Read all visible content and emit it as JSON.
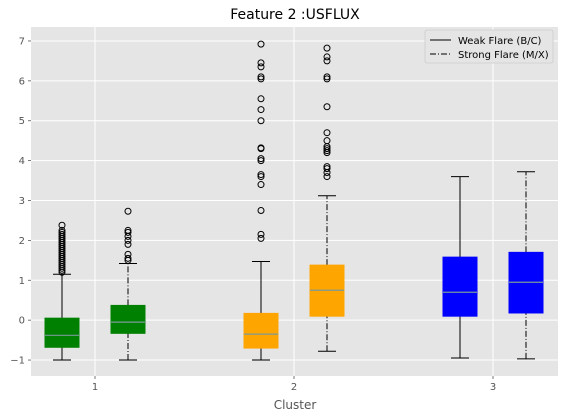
{
  "chart_data": {
    "type": "boxplot",
    "title": "Feature 2 :USFLUX",
    "xlabel": "Cluster",
    "ylabel": "",
    "ylim": [
      -1.4,
      7.35
    ],
    "yticks": [
      -1,
      0,
      1,
      2,
      3,
      4,
      5,
      6,
      7
    ],
    "categories": [
      "1",
      "2",
      "3"
    ],
    "grid": true,
    "legend_placement": "top-right",
    "legend": [
      {
        "label": "Weak Flare (B/C)",
        "style": "solid"
      },
      {
        "label": "Strong Flare (M/X)",
        "style": "dashdot"
      }
    ],
    "groups": [
      {
        "category": "1",
        "color": "#008000",
        "boxes": [
          {
            "series": "Weak Flare (B/C)",
            "whisker_low": -1.0,
            "q1": -0.68,
            "median": -0.38,
            "q3": 0.05,
            "whisker_high": 1.15,
            "outliers": [
              1.2,
              1.25,
              1.3,
              1.35,
              1.4,
              1.45,
              1.5,
              1.55,
              1.6,
              1.65,
              1.7,
              1.75,
              1.8,
              1.85,
              1.9,
              1.95,
              2.0,
              2.05,
              2.1,
              2.15,
              2.2,
              2.25,
              2.38
            ]
          },
          {
            "series": "Strong Flare (M/X)",
            "whisker_low": -1.0,
            "q1": -0.33,
            "median": -0.05,
            "q3": 0.37,
            "whisker_high": 1.42,
            "outliers": [
              1.5,
              1.55,
              1.65,
              1.9,
              2.0,
              2.1,
              2.2,
              2.25,
              2.73
            ]
          }
        ]
      },
      {
        "category": "2",
        "color": "#FFA500",
        "boxes": [
          {
            "series": "Weak Flare (B/C)",
            "whisker_low": -1.0,
            "q1": -0.7,
            "median": -0.35,
            "q3": 0.17,
            "whisker_high": 1.47,
            "outliers": [
              2.05,
              2.15,
              2.75,
              3.4,
              3.6,
              3.65,
              4.0,
              4.05,
              4.3,
              4.32,
              5.0,
              5.28,
              5.55,
              6.05,
              6.1,
              6.35,
              6.45,
              6.92
            ]
          },
          {
            "series": "Strong Flare (M/X)",
            "whisker_low": -0.78,
            "q1": 0.1,
            "median": 0.75,
            "q3": 1.38,
            "whisker_high": 3.12,
            "outliers": [
              3.6,
              3.7,
              3.8,
              3.85,
              4.2,
              4.25,
              4.3,
              4.35,
              4.5,
              4.7,
              5.35,
              6.05,
              6.1,
              6.5,
              6.6,
              6.82
            ]
          }
        ]
      },
      {
        "category": "3",
        "color": "#0000FF",
        "boxes": [
          {
            "series": "Weak Flare (B/C)",
            "whisker_low": -0.95,
            "q1": 0.1,
            "median": 0.7,
            "q3": 1.58,
            "whisker_high": 3.6,
            "outliers": []
          },
          {
            "series": "Strong Flare (M/X)",
            "whisker_low": -0.97,
            "q1": 0.18,
            "median": 0.95,
            "q3": 1.7,
            "whisker_high": 3.72,
            "outliers": []
          }
        ]
      }
    ]
  }
}
